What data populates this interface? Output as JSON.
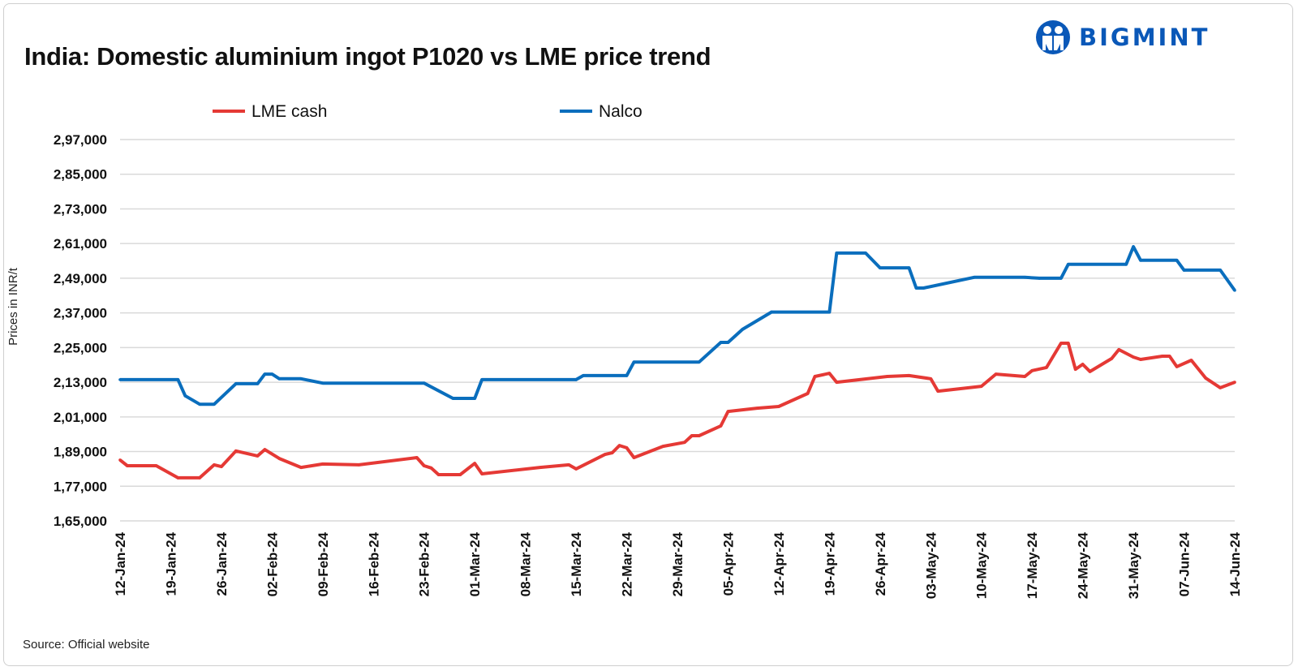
{
  "title": "India: Domestic aluminium ingot P1020 vs LME price trend",
  "logo": {
    "text": "BIGMINT",
    "color": "#0a58b8"
  },
  "source": "Source: Official website",
  "chart_data": {
    "type": "line",
    "title": "India: Domestic aluminium ingot P1020 vs LME price trend",
    "xlabel": "",
    "ylabel": "Prices in INR/t",
    "xlim": [
      "2024-01-12",
      "2024-06-14"
    ],
    "ylim": [
      165000,
      297000
    ],
    "grid": true,
    "legend_position": "top",
    "y_ticks": [
      165000,
      177000,
      189000,
      201000,
      213000,
      225000,
      237000,
      249000,
      261000,
      273000,
      285000,
      297000
    ],
    "y_tick_labels": [
      "1,65,000",
      "1,77,000",
      "1,89,000",
      "2,01,000",
      "2,13,000",
      "2,25,000",
      "2,37,000",
      "2,49,000",
      "2,61,000",
      "2,73,000",
      "2,85,000",
      "2,97,000"
    ],
    "x_ticks": [
      "2024-01-12",
      "2024-01-19",
      "2024-01-26",
      "2024-02-02",
      "2024-02-09",
      "2024-02-16",
      "2024-02-23",
      "2024-03-01",
      "2024-03-08",
      "2024-03-15",
      "2024-03-22",
      "2024-03-29",
      "2024-04-05",
      "2024-04-12",
      "2024-04-19",
      "2024-04-26",
      "2024-05-03",
      "2024-05-10",
      "2024-05-17",
      "2024-05-24",
      "2024-05-31",
      "2024-06-07",
      "2024-06-14"
    ],
    "x_tick_labels": [
      "12-Jan-24",
      "19-Jan-24",
      "26-Jan-24",
      "02-Feb-24",
      "09-Feb-24",
      "16-Feb-24",
      "23-Feb-24",
      "01-Mar-24",
      "08-Mar-24",
      "15-Mar-24",
      "22-Mar-24",
      "29-Mar-24",
      "05-Apr-24",
      "12-Apr-24",
      "19-Apr-24",
      "26-Apr-24",
      "03-May-24",
      "10-May-24",
      "17-May-24",
      "24-May-24",
      "31-May-24",
      "07-Jun-24",
      "14-Jun-24"
    ],
    "series": [
      {
        "name": "LME cash",
        "color": "#e53935",
        "points": [
          [
            "2024-01-12",
            186100
          ],
          [
            "2024-01-13",
            184100
          ],
          [
            "2024-01-17",
            184100
          ],
          [
            "2024-01-20",
            179900
          ],
          [
            "2024-01-23",
            179900
          ],
          [
            "2024-01-25",
            184400
          ],
          [
            "2024-01-26",
            183800
          ],
          [
            "2024-01-28",
            189200
          ],
          [
            "2024-01-31",
            187500
          ],
          [
            "2024-02-01",
            189700
          ],
          [
            "2024-02-03",
            186600
          ],
          [
            "2024-02-06",
            183500
          ],
          [
            "2024-02-09",
            184700
          ],
          [
            "2024-02-14",
            184400
          ],
          [
            "2024-02-22",
            186900
          ],
          [
            "2024-02-23",
            184100
          ],
          [
            "2024-02-24",
            183300
          ],
          [
            "2024-02-25",
            181000
          ],
          [
            "2024-02-28",
            181000
          ],
          [
            "2024-03-01",
            184900
          ],
          [
            "2024-03-02",
            181300
          ],
          [
            "2024-03-10",
            183500
          ],
          [
            "2024-03-14",
            184400
          ],
          [
            "2024-03-15",
            183000
          ],
          [
            "2024-03-19",
            188000
          ],
          [
            "2024-03-20",
            188600
          ],
          [
            "2024-03-21",
            191100
          ],
          [
            "2024-03-22",
            190300
          ],
          [
            "2024-03-23",
            186900
          ],
          [
            "2024-03-27",
            190800
          ],
          [
            "2024-03-30",
            192200
          ],
          [
            "2024-03-31",
            194500
          ],
          [
            "2024-04-01",
            194500
          ],
          [
            "2024-04-04",
            197900
          ],
          [
            "2024-04-05",
            202900
          ],
          [
            "2024-04-09",
            204000
          ],
          [
            "2024-04-12",
            204600
          ],
          [
            "2024-04-16",
            209100
          ],
          [
            "2024-04-17",
            215000
          ],
          [
            "2024-04-19",
            216100
          ],
          [
            "2024-04-20",
            213000
          ],
          [
            "2024-04-27",
            215000
          ],
          [
            "2024-04-30",
            215300
          ],
          [
            "2024-05-03",
            214200
          ],
          [
            "2024-05-04",
            209900
          ],
          [
            "2024-05-10",
            211600
          ],
          [
            "2024-05-12",
            215800
          ],
          [
            "2024-05-16",
            215000
          ],
          [
            "2024-05-17",
            217000
          ],
          [
            "2024-05-19",
            218100
          ],
          [
            "2024-05-21",
            226500
          ],
          [
            "2024-05-22",
            226500
          ],
          [
            "2024-05-23",
            217500
          ],
          [
            "2024-05-24",
            219200
          ],
          [
            "2024-05-25",
            216700
          ],
          [
            "2024-05-28",
            221200
          ],
          [
            "2024-05-29",
            224300
          ],
          [
            "2024-05-31",
            221700
          ],
          [
            "2024-06-01",
            220900
          ],
          [
            "2024-06-04",
            222000
          ],
          [
            "2024-06-05",
            222000
          ],
          [
            "2024-06-06",
            218400
          ],
          [
            "2024-06-08",
            220600
          ],
          [
            "2024-06-10",
            214400
          ],
          [
            "2024-06-12",
            211100
          ],
          [
            "2024-06-14",
            213000
          ]
        ]
      },
      {
        "name": "Nalco",
        "color": "#0a6ebd",
        "points": [
          [
            "2024-01-12",
            213900
          ],
          [
            "2024-01-20",
            213900
          ],
          [
            "2024-01-21",
            208300
          ],
          [
            "2024-01-23",
            205400
          ],
          [
            "2024-01-25",
            205400
          ],
          [
            "2024-01-28",
            212500
          ],
          [
            "2024-01-31",
            212500
          ],
          [
            "2024-02-01",
            215800
          ],
          [
            "2024-02-02",
            215800
          ],
          [
            "2024-02-03",
            214200
          ],
          [
            "2024-02-06",
            214200
          ],
          [
            "2024-02-09",
            212700
          ],
          [
            "2024-02-23",
            212700
          ],
          [
            "2024-02-27",
            207400
          ],
          [
            "2024-03-01",
            207400
          ],
          [
            "2024-03-02",
            213900
          ],
          [
            "2024-03-15",
            213900
          ],
          [
            "2024-03-16",
            215300
          ],
          [
            "2024-03-22",
            215300
          ],
          [
            "2024-03-23",
            220000
          ],
          [
            "2024-04-01",
            220000
          ],
          [
            "2024-04-04",
            226800
          ],
          [
            "2024-04-05",
            226800
          ],
          [
            "2024-04-07",
            231300
          ],
          [
            "2024-04-11",
            237300
          ],
          [
            "2024-04-19",
            237300
          ],
          [
            "2024-04-20",
            257700
          ],
          [
            "2024-04-24",
            257700
          ],
          [
            "2024-04-26",
            252600
          ],
          [
            "2024-04-30",
            252600
          ],
          [
            "2024-05-01",
            245600
          ],
          [
            "2024-05-02",
            245600
          ],
          [
            "2024-05-09",
            249300
          ],
          [
            "2024-05-16",
            249300
          ],
          [
            "2024-05-18",
            249000
          ],
          [
            "2024-05-21",
            249000
          ],
          [
            "2024-05-22",
            253800
          ],
          [
            "2024-05-30",
            253800
          ],
          [
            "2024-05-31",
            259900
          ],
          [
            "2024-06-01",
            255200
          ],
          [
            "2024-06-06",
            255200
          ],
          [
            "2024-06-07",
            251800
          ],
          [
            "2024-06-12",
            251800
          ],
          [
            "2024-06-14",
            244800
          ]
        ]
      }
    ]
  }
}
